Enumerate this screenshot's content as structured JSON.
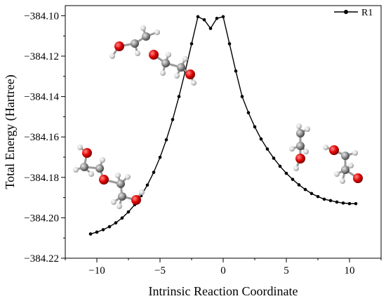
{
  "chart_data": {
    "type": "line",
    "title": "",
    "xlabel": "Intrinsic Reaction Coordinate",
    "ylabel": "Total Energy (Hartree)",
    "xlim": [
      -12.5,
      12.5
    ],
    "ylim": [
      -384.22,
      -384.095
    ],
    "x_ticks": [
      -10,
      -5,
      0,
      5,
      10
    ],
    "x_tick_labels": [
      "−10",
      "−5",
      "0",
      "5",
      "10"
    ],
    "y_ticks": [
      -384.1,
      -384.12,
      -384.14,
      -384.16,
      -384.18,
      -384.2,
      -384.22
    ],
    "y_tick_labels": [
      "−384.10",
      "−384.12",
      "−384.14",
      "−384.16",
      "−384.18",
      "−384.20",
      "−384.22"
    ],
    "grid": false,
    "legend": "top-right",
    "series": [
      {
        "name": "R1",
        "color": "#000000",
        "marker": "circle",
        "x": [
          -10.5,
          -10.0,
          -9.5,
          -9.0,
          -8.5,
          -8.0,
          -7.5,
          -7.0,
          -6.5,
          -6.0,
          -5.5,
          -5.0,
          -4.5,
          -4.0,
          -3.5,
          -3.0,
          -2.5,
          -2.0,
          -1.5,
          -1.0,
          -0.5,
          0.0,
          0.5,
          1.0,
          1.5,
          2.0,
          2.5,
          3.0,
          3.5,
          4.0,
          4.5,
          5.0,
          5.5,
          6.0,
          6.5,
          7.0,
          7.5,
          8.0,
          8.5,
          9.0,
          9.5,
          10.0,
          10.5
        ],
        "y": [
          -384.208,
          -384.2071,
          -384.2059,
          -384.2044,
          -384.2025,
          -384.2001,
          -384.1971,
          -384.1935,
          -384.1891,
          -384.1838,
          -384.1775,
          -384.1701,
          -384.1614,
          -384.1514,
          -384.14,
          -384.1274,
          -384.1139,
          -384.1005,
          -384.102,
          -384.1063,
          -384.1013,
          -384.1005,
          -384.1139,
          -384.1274,
          -384.14,
          -384.148,
          -384.155,
          -384.161,
          -384.166,
          -384.1705,
          -384.1745,
          -384.178,
          -384.181,
          -384.1837,
          -384.186,
          -384.188,
          -384.1895,
          -384.1908,
          -384.1915,
          -384.1922,
          -384.1927,
          -384.193,
          -384.193
        ]
      }
    ],
    "insets": [
      "molecule-upper-left",
      "molecule-lower-left",
      "molecule-right-pair"
    ]
  }
}
